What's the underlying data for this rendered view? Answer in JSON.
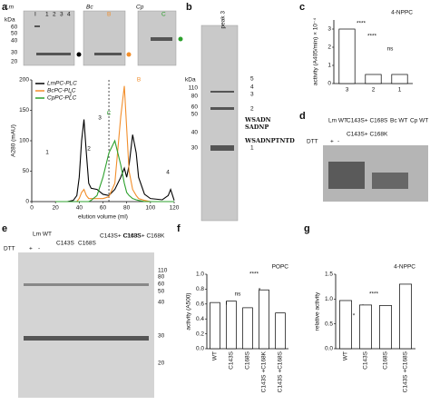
{
  "panels": [
    "a",
    "b",
    "c",
    "d",
    "e",
    "f",
    "g"
  ],
  "gel_a": {
    "titles": [
      "Lm",
      "Bc",
      "Cp"
    ],
    "lanes": [
      "I",
      "1",
      "2",
      "3",
      "4",
      "B",
      "C"
    ],
    "kda": [
      "kDa",
      "60",
      "50",
      "40",
      "30",
      "20"
    ]
  },
  "gel_b": {
    "title": "peak 3",
    "kda": [
      "kDa",
      "110",
      "80",
      "60",
      "50",
      "40",
      "30"
    ],
    "bands": [
      "5",
      "4",
      "3",
      "2",
      "1"
    ],
    "sequences": [
      "WSADN",
      "SADNP",
      "WSADNPTNTD"
    ]
  },
  "gel_d": {
    "lanes": [
      "Lm WT",
      "C143S+ C168S",
      "C143S+ C168K",
      "Bc WT",
      "Cp WT"
    ],
    "dtt": "DTT",
    "signs": [
      "+",
      "-"
    ]
  },
  "gel_e": {
    "lanes": [
      "Lm WT",
      "C143S",
      "C168S",
      "C143S+ C168S",
      "C143S+ C168K"
    ],
    "dtt": "DTT",
    "signs": [
      "+",
      "-"
    ],
    "kda": [
      "110",
      "80",
      "60",
      "50",
      "40",
      "30",
      "20"
    ]
  },
  "chart_data": [
    {
      "type": "line",
      "xlabel": "elution volume (ml)",
      "ylabel": "A280 (mAU)",
      "x": [
        20,
        30,
        35,
        38,
        40,
        42,
        44,
        46,
        48,
        50,
        55,
        60,
        65,
        70,
        75,
        78,
        80,
        82,
        85,
        88,
        90,
        95,
        100,
        110,
        115,
        117,
        120
      ],
      "series": [
        {
          "name": "LmPC-PLC",
          "color": "#000000",
          "values": [
            0,
            0,
            2,
            10,
            40,
            100,
            135,
            80,
            30,
            22,
            20,
            12,
            10,
            20,
            40,
            55,
            40,
            60,
            110,
            80,
            40,
            12,
            5,
            3,
            10,
            20,
            2
          ]
        },
        {
          "name": "BcPC-PLC",
          "color": "#f28e2b",
          "values": [
            0,
            0,
            0,
            0,
            5,
            15,
            20,
            10,
            5,
            5,
            5,
            5,
            8,
            30,
            140,
            190,
            120,
            50,
            20,
            10,
            5,
            2,
            0,
            0,
            0,
            0,
            0
          ]
        },
        {
          "name": "CpPC-PLC",
          "color": "#2ca02c",
          "values": [
            0,
            0,
            0,
            0,
            0,
            0,
            0,
            0,
            0,
            2,
            10,
            40,
            80,
            100,
            60,
            30,
            15,
            10,
            5,
            3,
            2,
            0,
            0,
            0,
            0,
            0,
            0
          ]
        }
      ],
      "xlim": [
        0,
        120
      ],
      "xticks": [
        0,
        20,
        40,
        60,
        80,
        100,
        120
      ],
      "ylim": [
        0,
        200
      ],
      "yticks": [
        0,
        50,
        100,
        150,
        200
      ],
      "annotations": [
        "I",
        "1",
        "2",
        "3",
        "4",
        "B",
        "C"
      ]
    },
    {
      "type": "bar",
      "title": "4-NPPC",
      "ylabel": "activity (A405/min) × 10⁻⁴",
      "categories": [
        "3",
        "2",
        "1"
      ],
      "values": [
        3.0,
        0.5,
        0.5
      ],
      "color": "#ffffff",
      "ylim": [
        0,
        3.5
      ],
      "yticks": [
        0,
        1,
        2,
        3
      ],
      "annotations": [
        "****",
        "****",
        "ns"
      ]
    },
    {
      "type": "bar",
      "title": "POPC",
      "ylabel": "activity (A500)",
      "categories": [
        "WT",
        "C143S",
        "C168S",
        "C143S +C168K",
        "C143S +C168S"
      ],
      "values": [
        0.62,
        0.64,
        0.55,
        0.79,
        0.48
      ],
      "color": "#ffffff",
      "ylim": [
        0,
        1.0
      ],
      "yticks": [
        {
          "value": 0,
          "label": "0.0"
        },
        0.2,
        0.4,
        0.6,
        0.8,
        {
          "value": 1,
          "label": "1.0"
        }
      ],
      "annotations": [
        "ns",
        "ns",
        "*",
        "****"
      ]
    },
    {
      "type": "bar",
      "title": "4-NPPC",
      "ylabel": "relative activity",
      "categories": [
        "WT",
        "C143S",
        "C168S",
        "C143S +C168S"
      ],
      "values": [
        0.97,
        0.88,
        0.87,
        1.3
      ],
      "color": "#ffffff",
      "ylim": [
        0,
        1.5
      ],
      "yticks": [
        {
          "value": 0,
          "label": "0.0"
        },
        0.5,
        {
          "value": 1,
          "label": "1.0"
        },
        1.5
      ],
      "annotations": [
        "*",
        "*",
        "****"
      ]
    }
  ]
}
